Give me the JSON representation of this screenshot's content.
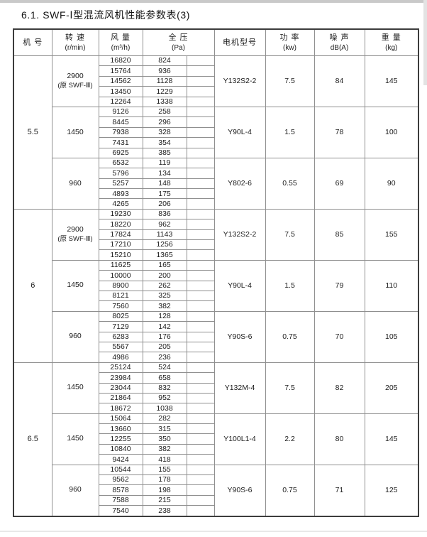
{
  "page": {
    "title": "6.1. SWF-Ⅰ型混流风机性能参数表(3)"
  },
  "table": {
    "headers": [
      {
        "name": "机  号",
        "unit": ""
      },
      {
        "name": "转  速",
        "unit": "(r/min)"
      },
      {
        "name": "风  量",
        "unit": "(m³/h)"
      },
      {
        "name": "全  压",
        "unit": "(Pa)"
      },
      {
        "name": "电机型号",
        "unit": ""
      },
      {
        "name": "功  率",
        "unit": "(kw)"
      },
      {
        "name": "噪  声",
        "unit": "dB(A)"
      },
      {
        "name": "重  量",
        "unit": "(kg)"
      }
    ],
    "machines": [
      {
        "model": "5.5",
        "blocks": [
          {
            "speed": "2900",
            "speed_note": "(原 SWF-Ⅲ)",
            "shaded": false,
            "rows": [
              [
                16820,
                824
              ],
              [
                15764,
                936
              ],
              [
                14562,
                1128
              ],
              [
                13450,
                1229
              ],
              [
                12264,
                1338
              ]
            ],
            "motor": "Y132S2-2",
            "power": "7.5",
            "noise": "84",
            "weight": "145"
          },
          {
            "speed": "1450",
            "speed_note": "",
            "shaded": true,
            "rows": [
              [
                9126,
                258
              ],
              [
                8445,
                296
              ],
              [
                7938,
                328
              ],
              [
                7431,
                354
              ],
              [
                6925,
                385
              ]
            ],
            "motor": "Y90L-4",
            "power": "1.5",
            "noise": "78",
            "weight": "100"
          },
          {
            "speed": "960",
            "speed_note": "",
            "shaded": false,
            "rows": [
              [
                6532,
                119
              ],
              [
                5796,
                134
              ],
              [
                5257,
                148
              ],
              [
                4893,
                175
              ],
              [
                4265,
                206
              ]
            ],
            "motor": "Y802-6",
            "power": "0.55",
            "noise": "69",
            "weight": "90"
          }
        ]
      },
      {
        "model": "6",
        "blocks": [
          {
            "speed": "2900",
            "speed_note": "(原 SWF-Ⅲ)",
            "shaded": true,
            "rows": [
              [
                19230,
                836
              ],
              [
                18220,
                962
              ],
              [
                17824,
                1143
              ],
              [
                17210,
                1256
              ],
              [
                15210,
                1365
              ]
            ],
            "motor": "Y132S2-2",
            "power": "7.5",
            "noise": "85",
            "weight": "155"
          },
          {
            "speed": "1450",
            "speed_note": "",
            "shaded": false,
            "rows": [
              [
                11625,
                165
              ],
              [
                10000,
                200
              ],
              [
                8900,
                262
              ],
              [
                8121,
                325
              ],
              [
                7560,
                382
              ]
            ],
            "motor": "Y90L-4",
            "power": "1.5",
            "noise": "79",
            "weight": "110"
          },
          {
            "speed": "960",
            "speed_note": "",
            "shaded": true,
            "rows": [
              [
                8025,
                128
              ],
              [
                7129,
                142
              ],
              [
                6283,
                176
              ],
              [
                5567,
                205
              ],
              [
                4986,
                236
              ]
            ],
            "motor": "Y90S-6",
            "power": "0.75",
            "noise": "70",
            "weight": "105"
          }
        ]
      },
      {
        "model": "6.5",
        "blocks": [
          {
            "speed": "1450",
            "speed_note": "",
            "shaded": false,
            "rows": [
              [
                25124,
                524
              ],
              [
                23984,
                658
              ],
              [
                23044,
                832
              ],
              [
                21864,
                952
              ],
              [
                18672,
                1038
              ]
            ],
            "motor": "Y132M-4",
            "power": "7.5",
            "noise": "82",
            "weight": "205"
          },
          {
            "speed": "1450",
            "speed_note": "",
            "shaded": true,
            "rows": [
              [
                15064,
                282
              ],
              [
                13660,
                315
              ],
              [
                12255,
                350
              ],
              [
                10840,
                382
              ],
              [
                9424,
                418
              ]
            ],
            "motor": "Y100L1-4",
            "power": "2.2",
            "noise": "80",
            "weight": "145"
          },
          {
            "speed": "960",
            "speed_note": "",
            "shaded": false,
            "rows": [
              [
                10544,
                155
              ],
              [
                9562,
                178
              ],
              [
                8578,
                198
              ],
              [
                7588,
                215
              ],
              [
                7540,
                238
              ]
            ],
            "motor": "Y90S-6",
            "power": "0.75",
            "noise": "71",
            "weight": "125"
          }
        ]
      }
    ]
  },
  "colors": {
    "shaded_block": "#e7e7e7",
    "border_outer": "#3c3c3c",
    "border_inner": "#8f8f8f",
    "text": "#1c1c1c"
  }
}
